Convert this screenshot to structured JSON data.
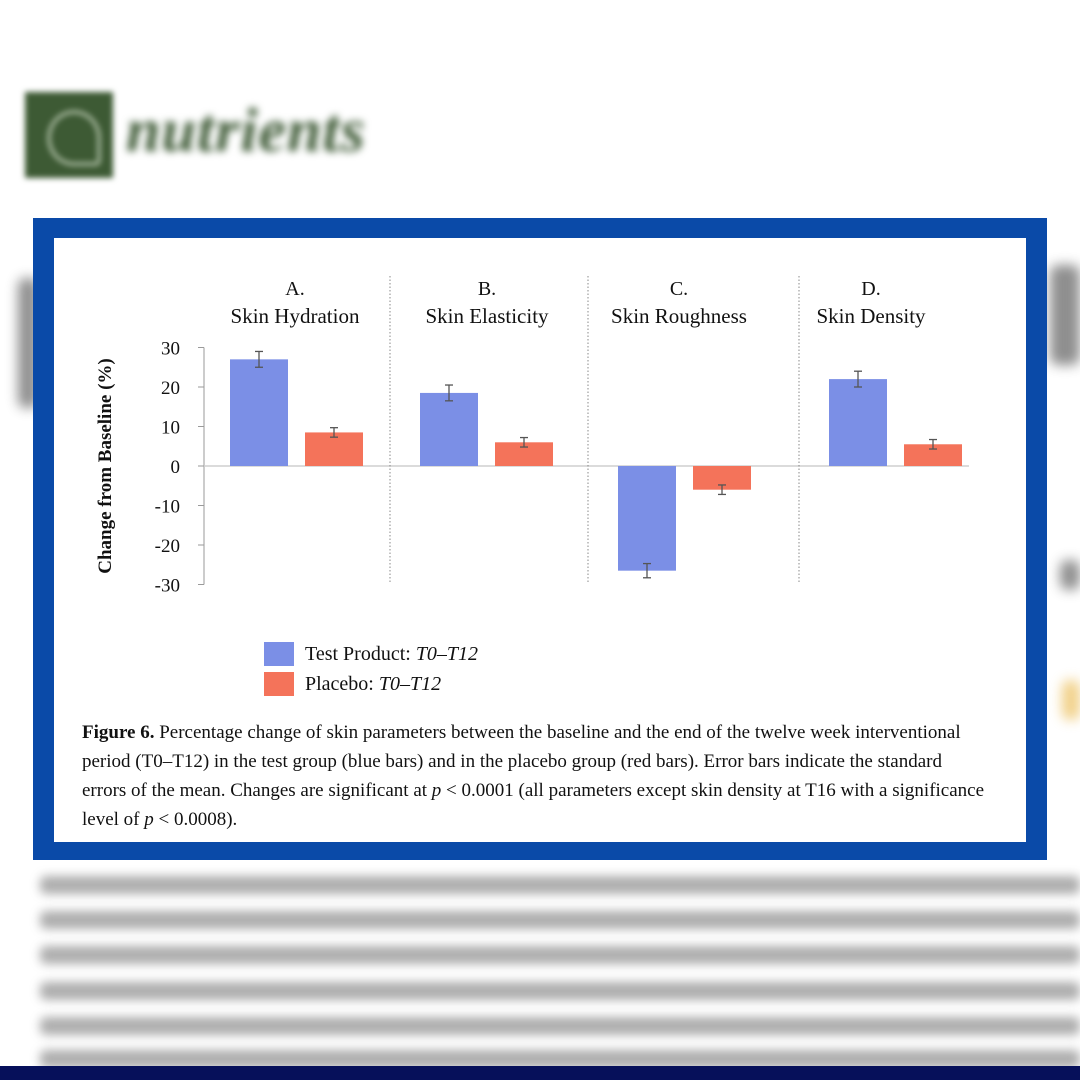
{
  "background": {
    "journal_name": "nutrients"
  },
  "legend": [
    {
      "label": "Test Product: ",
      "period": "T0–T12",
      "color": "#7b8fe6"
    },
    {
      "label": "Placebo: ",
      "period": "T0–T12",
      "color": "#f4735a"
    }
  ],
  "caption": {
    "figure_label": "Figure 6.",
    "text_1": " Percentage change of skin parameters between the baseline and the end of the twelve week interventional period (T0–T12) in the test group (blue bars) and in the placebo group (red bars).  Error bars indicate the standard errors of the mean.  Changes are significant at ",
    "p1": "p",
    "text_2": " < 0.0001 (all parameters except skin density at T16 with a significance level of ",
    "p2": "p",
    "text_3": " < 0.0008)."
  },
  "chart_data": {
    "type": "bar",
    "ylabel": "Change from Baseline (%)",
    "ylim": [
      -30,
      30
    ],
    "yticks": [
      30,
      20,
      10,
      0,
      -10,
      -20,
      -30
    ],
    "panels": [
      {
        "letter": "A.",
        "title": "Skin Hydration",
        "test": 27,
        "test_err": 2,
        "placebo": 8.5,
        "placebo_err": 1.2
      },
      {
        "letter": "B.",
        "title": "Skin Elasticity",
        "test": 18.5,
        "test_err": 2,
        "placebo": 6,
        "placebo_err": 1.2
      },
      {
        "letter": "C.",
        "title": "Skin Roughness",
        "test": -26.5,
        "test_err": 1.8,
        "placebo": -6,
        "placebo_err": 1.2
      },
      {
        "letter": "D.",
        "title": "Skin Density",
        "test": 22,
        "test_err": 2,
        "placebo": 5.5,
        "placebo_err": 1.2
      }
    ],
    "series": [
      {
        "name": "Test Product: T0–T12",
        "color": "#7b8fe6"
      },
      {
        "name": "Placebo: T0–T12",
        "color": "#f4735a"
      }
    ],
    "legend_position": "bottom-left",
    "grid": false
  }
}
